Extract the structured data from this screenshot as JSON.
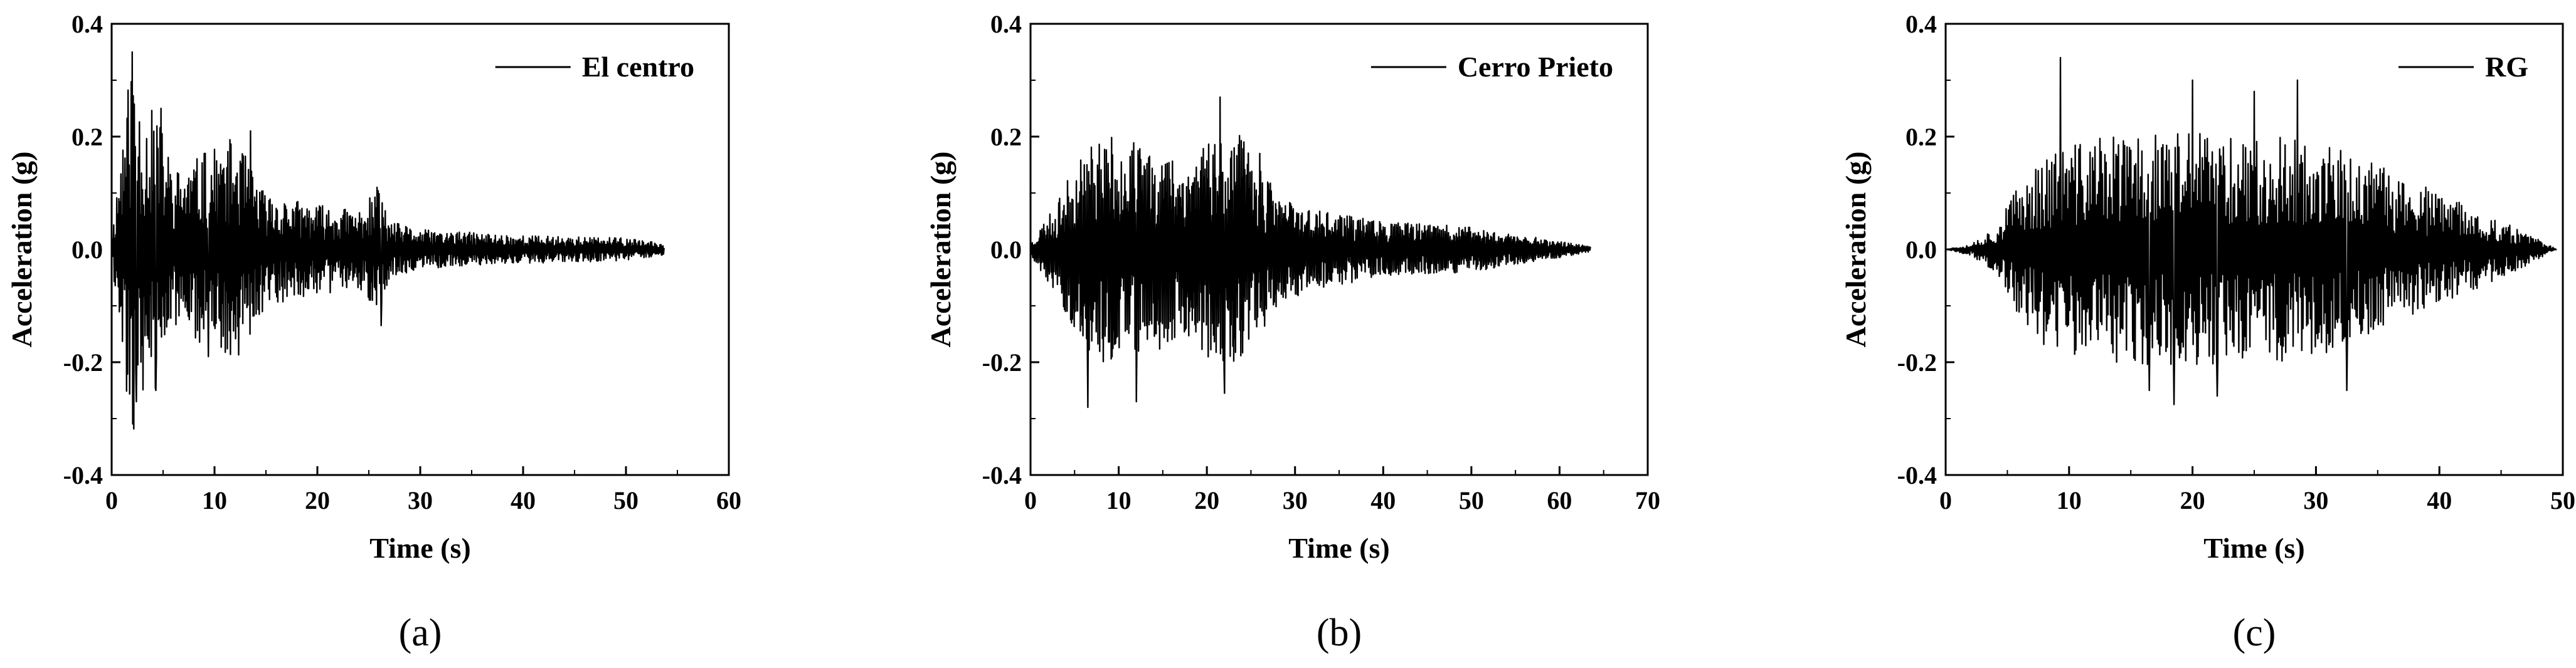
{
  "chart_data": [
    {
      "type": "line",
      "panel_label": "(a)",
      "legend": "El centro",
      "xlabel": "Time (s)",
      "ylabel": "Acceleration (g)",
      "xlim": [
        0,
        60
      ],
      "ylim": [
        -0.4,
        0.4
      ],
      "xticks": [
        "0",
        "10",
        "20",
        "30",
        "40",
        "50",
        "60"
      ],
      "yticks": [
        "-0.4",
        "-0.2",
        "0.0",
        "0.2",
        "0.4"
      ],
      "duration": 53.7,
      "envelope": [
        [
          0,
          0.02
        ],
        [
          1,
          0.2
        ],
        [
          2,
          0.35
        ],
        [
          3,
          0.25
        ],
        [
          4.5,
          0.25
        ],
        [
          6,
          0.14
        ],
        [
          9,
          0.17
        ],
        [
          12,
          0.2
        ],
        [
          15,
          0.1
        ],
        [
          20,
          0.08
        ],
        [
          24,
          0.07
        ],
        [
          26,
          0.11
        ],
        [
          27,
          0.05
        ],
        [
          30,
          0.035
        ],
        [
          40,
          0.025
        ],
        [
          50,
          0.02
        ],
        [
          53.7,
          0.01
        ]
      ],
      "peaks": [
        [
          2.0,
          0.35
        ],
        [
          2.4,
          -0.27
        ],
        [
          4.3,
          -0.25
        ],
        [
          4.8,
          0.25
        ],
        [
          9.0,
          0.17
        ],
        [
          9.4,
          -0.19
        ],
        [
          13.5,
          0.21
        ],
        [
          25.8,
          0.11
        ],
        [
          26.2,
          -0.135
        ]
      ],
      "seed": 11
    },
    {
      "type": "line",
      "panel_label": "(b)",
      "legend": "Cerro Prieto",
      "xlabel": "Time (s)",
      "ylabel": "Acceleration (g)",
      "xlim": [
        0,
        70
      ],
      "ylim": [
        -0.4,
        0.4
      ],
      "xticks": [
        "0",
        "10",
        "20",
        "30",
        "40",
        "50",
        "60",
        "70"
      ],
      "yticks": [
        "-0.4",
        "-0.2",
        "0.0",
        "0.2",
        "0.4"
      ],
      "duration": 63.5,
      "envelope": [
        [
          0,
          0.01
        ],
        [
          1.5,
          0.05
        ],
        [
          3,
          0.08
        ],
        [
          5,
          0.15
        ],
        [
          7,
          0.2
        ],
        [
          10,
          0.2
        ],
        [
          14,
          0.18
        ],
        [
          18,
          0.16
        ],
        [
          21,
          0.22
        ],
        [
          24,
          0.2
        ],
        [
          28,
          0.1
        ],
        [
          32,
          0.07
        ],
        [
          40,
          0.05
        ],
        [
          50,
          0.04
        ],
        [
          58,
          0.02
        ],
        [
          63.5,
          0.005
        ]
      ],
      "peaks": [
        [
          6.5,
          0.23
        ],
        [
          6.5,
          -0.28
        ],
        [
          12.0,
          -0.27
        ],
        [
          21.5,
          0.27
        ],
        [
          22.0,
          -0.255
        ],
        [
          26.0,
          0.17
        ]
      ],
      "seed": 23
    },
    {
      "type": "line",
      "panel_label": "(c)",
      "legend": "RG",
      "xlabel": "Time (s)",
      "ylabel": "Acceleration (g)",
      "xlim": [
        0,
        50
      ],
      "ylim": [
        -0.4,
        0.4
      ],
      "xticks": [
        "0",
        "10",
        "20",
        "30",
        "40",
        "50"
      ],
      "yticks": [
        "-0.4",
        "-0.2",
        "0.0",
        "0.2",
        "0.4"
      ],
      "duration": 49.5,
      "envelope": [
        [
          0,
          0.0
        ],
        [
          2,
          0.01
        ],
        [
          4,
          0.04
        ],
        [
          6,
          0.12
        ],
        [
          8,
          0.17
        ],
        [
          12,
          0.2
        ],
        [
          20,
          0.21
        ],
        [
          28,
          0.2
        ],
        [
          33,
          0.17
        ],
        [
          38,
          0.12
        ],
        [
          43,
          0.07
        ],
        [
          47,
          0.03
        ],
        [
          49.5,
          0.0
        ]
      ],
      "peaks": [
        [
          9.3,
          0.34
        ],
        [
          16.5,
          -0.25
        ],
        [
          18.5,
          -0.275
        ],
        [
          20.0,
          0.3
        ],
        [
          22.0,
          -0.26
        ],
        [
          25.0,
          0.28
        ],
        [
          28.5,
          0.3
        ],
        [
          32.5,
          -0.25
        ]
      ],
      "seed": 37
    }
  ]
}
